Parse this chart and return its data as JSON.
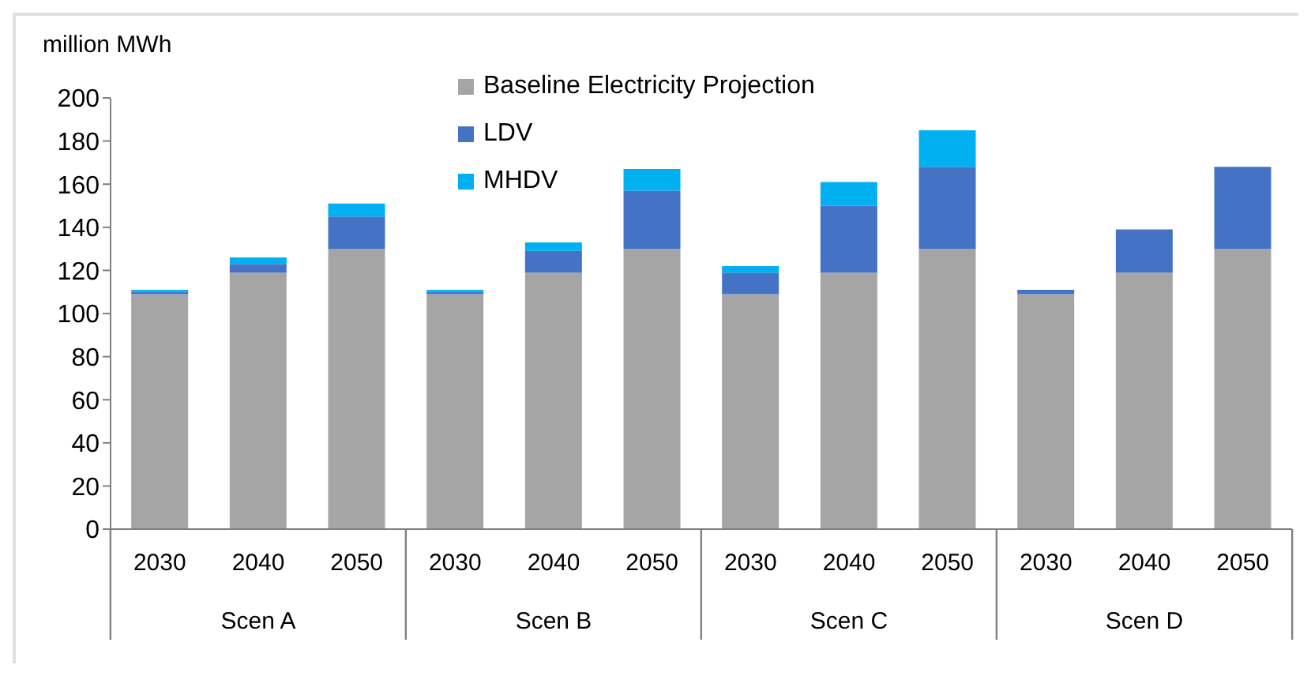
{
  "chart_data": {
    "type": "bar",
    "stacked": true,
    "ylabel": "million MWh",
    "categories": [
      "2030",
      "2040",
      "2050",
      "2030",
      "2040",
      "2050",
      "2030",
      "2040",
      "2050",
      "2030",
      "2040",
      "2050"
    ],
    "annotations": [
      "Scen A",
      "Scen B",
      "Scen C",
      "Scen D"
    ],
    "series": [
      {
        "name": "Baseline Electricity Projection",
        "color": "#a5a5a5",
        "values": [
          109,
          119,
          130,
          109,
          119,
          130,
          109,
          119,
          130,
          109,
          119,
          130
        ]
      },
      {
        "name": "LDV",
        "color": "#4472c4",
        "values": [
          1,
          4,
          15,
          1,
          10,
          27,
          10,
          31,
          38,
          2,
          20,
          38
        ]
      },
      {
        "name": "MHDV",
        "color": "#00b0f0",
        "values": [
          1,
          3,
          6,
          1,
          4,
          10,
          3,
          11,
          17,
          0,
          0,
          0
        ]
      }
    ],
    "ylim": [
      0,
      200
    ],
    "yticks": [
      0,
      20,
      40,
      60,
      80,
      100,
      120,
      140,
      160,
      180,
      200
    ],
    "grid": false,
    "legend": "top"
  }
}
